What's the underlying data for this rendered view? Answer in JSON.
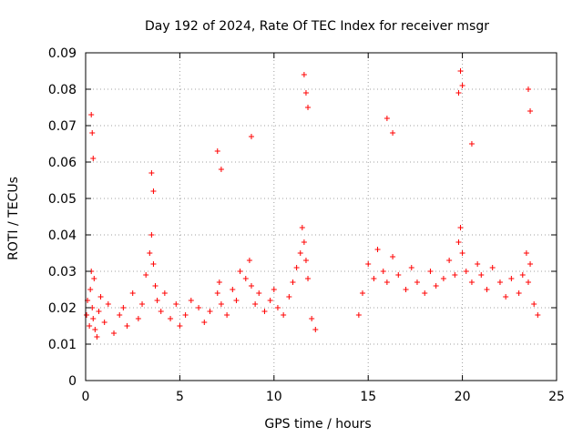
{
  "chart_data": {
    "type": "scatter",
    "title": "Day 192 of 2024, Rate Of TEC Index for receiver msgr",
    "xlabel": "GPS time / hours",
    "ylabel": "ROTI / TECUs",
    "xlim": [
      0,
      25
    ],
    "ylim": [
      0,
      0.09
    ],
    "x_ticks": [
      0,
      5,
      10,
      15,
      20,
      25
    ],
    "x_tick_labels": [
      "0",
      "5",
      "10",
      "15",
      "20",
      "25"
    ],
    "y_ticks": [
      0,
      0.01,
      0.02,
      0.03,
      0.04,
      0.05,
      0.06,
      0.07,
      0.08,
      0.09
    ],
    "y_tick_labels": [
      "0",
      "0.01",
      "0.02",
      "0.03",
      "0.04",
      "0.05",
      "0.06",
      "0.07",
      "0.08",
      "0.09"
    ],
    "grid": true,
    "marker": "+",
    "color": "#ff0000",
    "series": [
      {
        "x": [
          0.05,
          0.1,
          0.2,
          0.25,
          0.3,
          0.35,
          0.4,
          0.45,
          0.5,
          0.6,
          0.7,
          0.8,
          1.0,
          1.2,
          1.5,
          1.8,
          2.0,
          2.2,
          2.5,
          2.8,
          3.0,
          3.2,
          3.4,
          3.5,
          3.6,
          3.7,
          3.8,
          4.0,
          4.2,
          4.5,
          4.8,
          5.0,
          5.3,
          5.6,
          6.0,
          6.3,
          6.6,
          7.0,
          7.1,
          7.2,
          7.5,
          7.8,
          8.0,
          8.2,
          8.5,
          8.7,
          8.8,
          9.0,
          9.2,
          9.5,
          9.8,
          10.0,
          10.2,
          10.5,
          10.8,
          11.0,
          11.2,
          11.4,
          11.5,
          11.6,
          11.7,
          11.8,
          12.0,
          12.2,
          14.5,
          14.7,
          15.0,
          15.3,
          15.5,
          15.8,
          16.0,
          16.3,
          16.6,
          17.0,
          17.3,
          17.6,
          18.0,
          18.3,
          18.6,
          19.0,
          19.3,
          19.6,
          19.8,
          19.9,
          20.0,
          20.2,
          20.5,
          20.8,
          21.0,
          21.3,
          21.6,
          22.0,
          22.3,
          22.6,
          23.0,
          23.2,
          23.4,
          23.5,
          23.6,
          23.8,
          24.0,
          0.3,
          0.35,
          0.4,
          3.5,
          3.6,
          7.0,
          7.2,
          8.8,
          11.6,
          11.7,
          11.8,
          19.8,
          19.9,
          20.0,
          23.5,
          23.6,
          20.5,
          16.0,
          16.3
        ],
        "y": [
          0.018,
          0.022,
          0.015,
          0.025,
          0.03,
          0.02,
          0.017,
          0.028,
          0.014,
          0.012,
          0.019,
          0.023,
          0.016,
          0.021,
          0.013,
          0.018,
          0.02,
          0.015,
          0.024,
          0.017,
          0.021,
          0.029,
          0.035,
          0.04,
          0.032,
          0.026,
          0.022,
          0.019,
          0.024,
          0.017,
          0.021,
          0.015,
          0.018,
          0.022,
          0.02,
          0.016,
          0.019,
          0.024,
          0.027,
          0.021,
          0.018,
          0.025,
          0.022,
          0.03,
          0.028,
          0.033,
          0.026,
          0.021,
          0.024,
          0.019,
          0.022,
          0.025,
          0.02,
          0.018,
          0.023,
          0.027,
          0.031,
          0.035,
          0.042,
          0.038,
          0.033,
          0.028,
          0.017,
          0.014,
          0.018,
          0.024,
          0.032,
          0.028,
          0.036,
          0.03,
          0.027,
          0.034,
          0.029,
          0.025,
          0.031,
          0.027,
          0.024,
          0.03,
          0.026,
          0.028,
          0.033,
          0.029,
          0.038,
          0.042,
          0.035,
          0.03,
          0.027,
          0.032,
          0.029,
          0.025,
          0.031,
          0.027,
          0.023,
          0.028,
          0.024,
          0.029,
          0.035,
          0.027,
          0.032,
          0.021,
          0.018,
          0.073,
          0.068,
          0.061,
          0.057,
          0.052,
          0.063,
          0.058,
          0.067,
          0.084,
          0.079,
          0.075,
          0.079,
          0.085,
          0.081,
          0.08,
          0.074,
          0.065,
          0.072,
          0.068
        ]
      }
    ]
  }
}
